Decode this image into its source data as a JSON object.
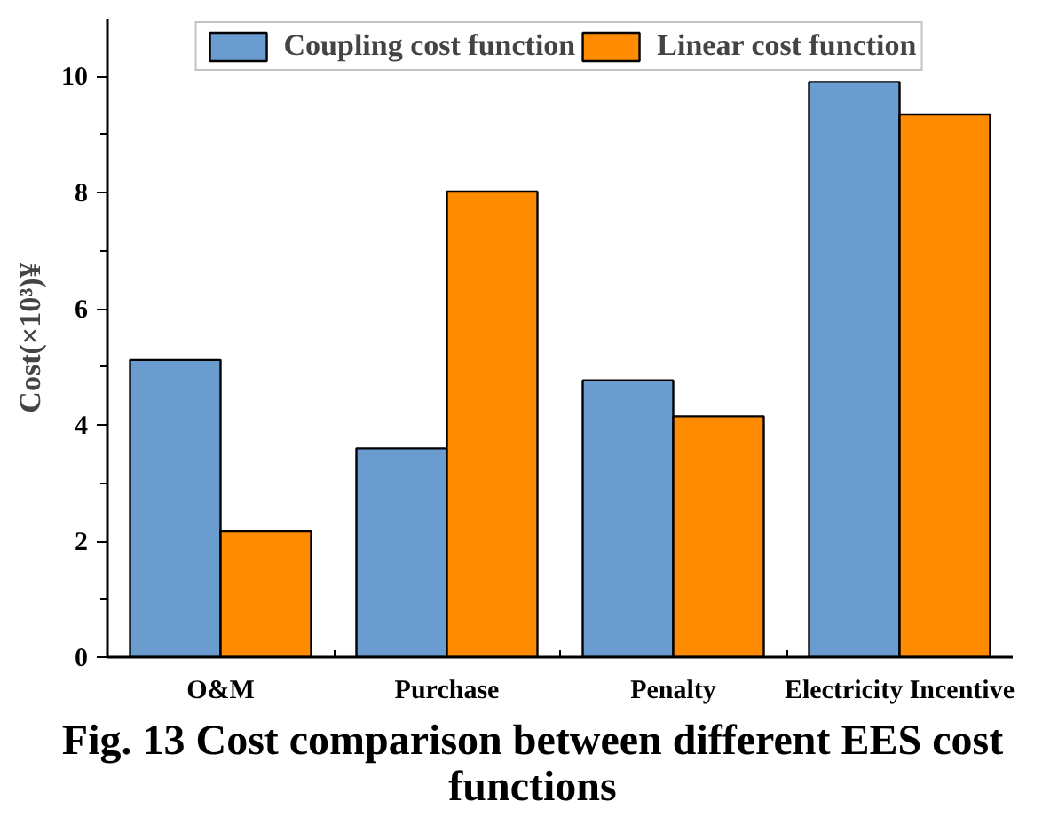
{
  "chart_data": {
    "type": "bar",
    "title": "Fig. 13 Cost comparison between different EES cost functions",
    "ylabel": "Cost(×10³)¥",
    "categories": [
      "O&M",
      "Purchase",
      "Penalty",
      "Electricity Incentive"
    ],
    "series": [
      {
        "name": "Coupling cost function",
        "color": "#6a9ccf",
        "values": [
          5.12,
          3.6,
          4.77,
          9.91
        ]
      },
      {
        "name": "Linear cost function",
        "color": "#ff8c00",
        "values": [
          2.17,
          8.02,
          4.15,
          9.35
        ]
      }
    ],
    "ylim": [
      0,
      11
    ],
    "yticks": [
      0,
      2,
      4,
      6,
      8,
      10
    ],
    "grid": false,
    "legend": "top"
  }
}
